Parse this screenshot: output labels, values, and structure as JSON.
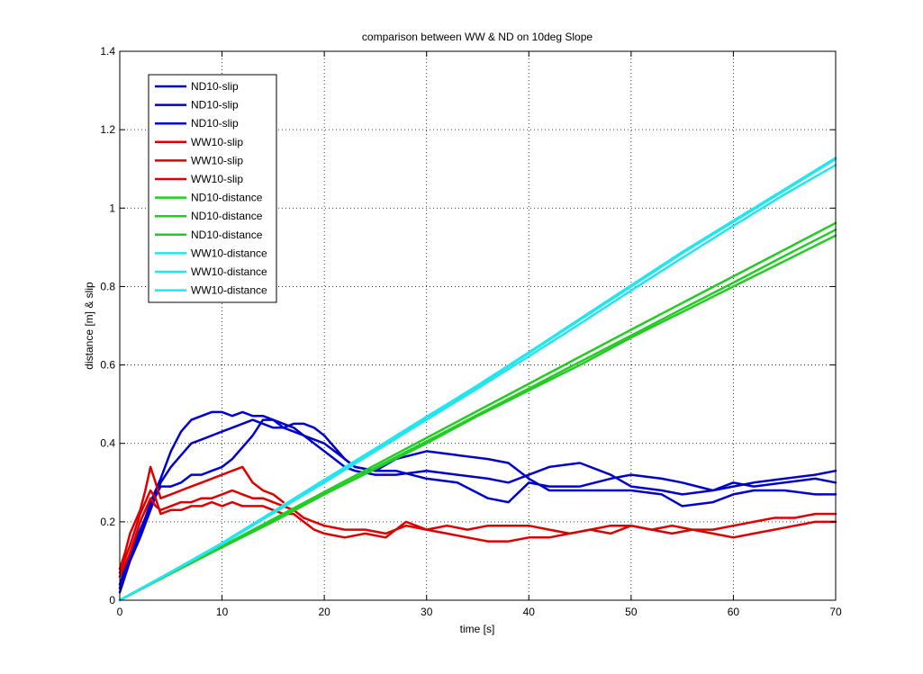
{
  "chart_data": {
    "type": "line",
    "title": "comparison between WW & ND on 10deg Slope",
    "xlabel": "time [s]",
    "ylabel": "distance [m] & slip",
    "xlim": [
      0,
      70
    ],
    "ylim": [
      0,
      1.4
    ],
    "xticks": [
      0,
      10,
      20,
      30,
      40,
      50,
      60,
      70
    ],
    "yticks": [
      0,
      0.2,
      0.4,
      0.6,
      0.8,
      1,
      1.2,
      1.4
    ],
    "xtick_labels": [
      "0",
      "10",
      "20",
      "30",
      "40",
      "50",
      "60",
      "70"
    ],
    "ytick_labels": [
      "0",
      "0.2",
      "0.4",
      "0.6",
      "0.8",
      "1",
      "1.2",
      "1.4"
    ],
    "grid": true,
    "grid_style": "dotted",
    "legend_position": "top-left",
    "colors": {
      "nd_slip": "#0000cc",
      "ww_slip": "#dd0000",
      "nd_distance": "#22cc22",
      "ww_distance": "#22e5ee"
    },
    "series": [
      {
        "name": "ND10-slip",
        "color": "#0000cc",
        "x": [
          0,
          0.5,
          1,
          2,
          3,
          4,
          5,
          6,
          7,
          8,
          9,
          10,
          11,
          12,
          13,
          14,
          15,
          16,
          17,
          18,
          19,
          20,
          21,
          22,
          23,
          25,
          27,
          30,
          33,
          36,
          38,
          40,
          42,
          45,
          48,
          50,
          53,
          55,
          58,
          60,
          62,
          65,
          68,
          70
        ],
        "y": [
          0.04,
          0.08,
          0.12,
          0.18,
          0.24,
          0.29,
          0.29,
          0.3,
          0.32,
          0.32,
          0.33,
          0.34,
          0.36,
          0.39,
          0.42,
          0.46,
          0.46,
          0.45,
          0.44,
          0.42,
          0.4,
          0.38,
          0.36,
          0.34,
          0.33,
          0.32,
          0.32,
          0.33,
          0.32,
          0.31,
          0.3,
          0.32,
          0.34,
          0.35,
          0.32,
          0.29,
          0.28,
          0.27,
          0.28,
          0.29,
          0.3,
          0.31,
          0.32,
          0.33
        ]
      },
      {
        "name": "ND10-slip",
        "color": "#0000cc",
        "x": [
          0,
          0.5,
          1,
          2,
          3,
          4,
          5,
          6,
          7,
          8,
          9,
          10,
          11,
          12,
          13,
          14,
          15,
          16,
          17,
          18,
          19,
          20,
          21,
          22,
          23,
          25,
          27,
          30,
          33,
          36,
          38,
          40,
          42,
          45,
          48,
          50,
          53,
          55,
          58,
          60,
          62,
          65,
          68,
          70
        ],
        "y": [
          0.03,
          0.07,
          0.11,
          0.17,
          0.25,
          0.31,
          0.38,
          0.43,
          0.46,
          0.47,
          0.48,
          0.48,
          0.47,
          0.48,
          0.47,
          0.47,
          0.46,
          0.44,
          0.43,
          0.42,
          0.41,
          0.4,
          0.38,
          0.36,
          0.34,
          0.33,
          0.33,
          0.31,
          0.3,
          0.26,
          0.25,
          0.3,
          0.29,
          0.29,
          0.31,
          0.32,
          0.31,
          0.3,
          0.28,
          0.3,
          0.29,
          0.3,
          0.31,
          0.3
        ]
      },
      {
        "name": "ND10-slip",
        "color": "#0000cc",
        "x": [
          0,
          0.5,
          1,
          2,
          3,
          4,
          5,
          6,
          7,
          8,
          9,
          10,
          11,
          12,
          13,
          14,
          15,
          16,
          17,
          18,
          19,
          20,
          21,
          22,
          23,
          25,
          27,
          30,
          33,
          36,
          38,
          40,
          42,
          45,
          48,
          50,
          53,
          55,
          58,
          60,
          62,
          65,
          68,
          70
        ],
        "y": [
          0.02,
          0.06,
          0.1,
          0.16,
          0.23,
          0.3,
          0.34,
          0.37,
          0.4,
          0.41,
          0.42,
          0.43,
          0.44,
          0.45,
          0.46,
          0.45,
          0.44,
          0.44,
          0.45,
          0.45,
          0.44,
          0.42,
          0.39,
          0.36,
          0.34,
          0.33,
          0.36,
          0.38,
          0.37,
          0.36,
          0.35,
          0.31,
          0.28,
          0.28,
          0.28,
          0.28,
          0.27,
          0.24,
          0.25,
          0.27,
          0.28,
          0.28,
          0.27,
          0.27
        ]
      },
      {
        "name": "WW10-slip",
        "color": "#dd0000",
        "x": [
          0,
          0.5,
          1,
          2,
          2.5,
          3,
          3.5,
          4,
          5,
          6,
          7,
          8,
          9,
          10,
          11,
          12,
          13,
          14,
          15,
          16
        ],
        "y": [
          0.08,
          0.12,
          0.17,
          0.23,
          0.28,
          0.34,
          0.3,
          0.26,
          0.27,
          0.28,
          0.29,
          0.3,
          0.31,
          0.32,
          0.33,
          0.34,
          0.3,
          0.28,
          0.27,
          0.25
        ]
      },
      {
        "name": "WW10-slip",
        "color": "#dd0000",
        "x": [
          0,
          1,
          2,
          3,
          3.5,
          4,
          5,
          6,
          7,
          8,
          9,
          10,
          11,
          12,
          13,
          14,
          15,
          16,
          17,
          18,
          19,
          20,
          22,
          24,
          26,
          28,
          30,
          32,
          34,
          36,
          38,
          40,
          42,
          44,
          46,
          48,
          50,
          52,
          54,
          56,
          58,
          60,
          62,
          64,
          66,
          68,
          70
        ],
        "y": [
          0.06,
          0.12,
          0.2,
          0.26,
          0.24,
          0.23,
          0.24,
          0.25,
          0.25,
          0.26,
          0.26,
          0.27,
          0.28,
          0.27,
          0.26,
          0.26,
          0.25,
          0.24,
          0.23,
          0.21,
          0.2,
          0.19,
          0.18,
          0.18,
          0.17,
          0.19,
          0.18,
          0.19,
          0.18,
          0.19,
          0.19,
          0.19,
          0.18,
          0.17,
          0.18,
          0.19,
          0.19,
          0.18,
          0.19,
          0.18,
          0.18,
          0.19,
          0.2,
          0.21,
          0.21,
          0.22,
          0.22
        ]
      },
      {
        "name": "WW10-slip",
        "color": "#dd0000",
        "x": [
          0,
          1,
          2,
          3,
          3.5,
          4,
          5,
          6,
          7,
          8,
          9,
          10,
          11,
          12,
          13,
          14,
          15,
          16,
          17,
          18,
          19,
          20,
          22,
          24,
          26,
          28,
          30,
          32,
          34,
          36,
          38,
          40,
          42,
          44,
          46,
          48,
          50,
          52,
          54,
          56,
          58,
          60,
          62,
          64,
          66,
          68,
          70
        ],
        "y": [
          0.07,
          0.14,
          0.22,
          0.28,
          0.26,
          0.22,
          0.23,
          0.23,
          0.24,
          0.24,
          0.25,
          0.24,
          0.25,
          0.24,
          0.24,
          0.24,
          0.23,
          0.22,
          0.22,
          0.2,
          0.18,
          0.17,
          0.16,
          0.17,
          0.16,
          0.2,
          0.18,
          0.17,
          0.16,
          0.15,
          0.15,
          0.16,
          0.16,
          0.17,
          0.18,
          0.17,
          0.19,
          0.18,
          0.17,
          0.18,
          0.17,
          0.16,
          0.17,
          0.18,
          0.19,
          0.2,
          0.2
        ]
      },
      {
        "name": "ND10-distance",
        "color": "#22cc22",
        "x": [
          0,
          5,
          10,
          15,
          20,
          25,
          30,
          35,
          40,
          45,
          50,
          55,
          60,
          65,
          70
        ],
        "y": [
          0,
          0.07,
          0.135,
          0.2,
          0.27,
          0.335,
          0.4,
          0.47,
          0.535,
          0.6,
          0.67,
          0.735,
          0.8,
          0.865,
          0.93
        ]
      },
      {
        "name": "ND10-distance",
        "color": "#22cc22",
        "x": [
          0,
          5,
          10,
          15,
          20,
          25,
          30,
          35,
          40,
          45,
          50,
          55,
          60,
          65,
          70
        ],
        "y": [
          0,
          0.068,
          0.135,
          0.202,
          0.27,
          0.338,
          0.405,
          0.473,
          0.54,
          0.608,
          0.675,
          0.743,
          0.81,
          0.878,
          0.945
        ]
      },
      {
        "name": "ND10-distance",
        "color": "#22cc22",
        "x": [
          0,
          5,
          10,
          15,
          20,
          25,
          30,
          35,
          40,
          45,
          50,
          55,
          60,
          65,
          70
        ],
        "y": [
          0,
          0.069,
          0.138,
          0.207,
          0.276,
          0.345,
          0.414,
          0.483,
          0.552,
          0.621,
          0.69,
          0.758,
          0.826,
          0.894,
          0.962
        ]
      },
      {
        "name": "WW10-distance",
        "color": "#22e5ee",
        "x": [
          0,
          5,
          10,
          15,
          20,
          25,
          30,
          35,
          40,
          45,
          50,
          55,
          60,
          65,
          70
        ],
        "y": [
          0,
          0.072,
          0.145,
          0.225,
          0.305,
          0.385,
          0.465,
          0.545,
          0.63,
          0.715,
          0.8,
          0.885,
          0.965,
          1.045,
          1.125
        ]
      },
      {
        "name": "WW10-distance",
        "color": "#22e5ee",
        "x": [
          0,
          5,
          10,
          15,
          20,
          25,
          30,
          35,
          40,
          45,
          50,
          55,
          60,
          65,
          70
        ],
        "y": [
          0,
          0.071,
          0.143,
          0.222,
          0.3,
          0.38,
          0.46,
          0.54,
          0.622,
          0.705,
          0.79,
          0.873,
          0.955,
          1.035,
          1.11
        ]
      },
      {
        "name": "WW10-distance",
        "color": "#22e5ee",
        "x": [
          0,
          5,
          10,
          15,
          20,
          25,
          30,
          35,
          40,
          45,
          50,
          55,
          60,
          65,
          70
        ],
        "y": [
          0,
          0.072,
          0.146,
          0.226,
          0.307,
          0.387,
          0.468,
          0.548,
          0.632,
          0.718,
          0.803,
          0.888,
          0.968,
          1.048,
          1.128
        ]
      }
    ]
  }
}
